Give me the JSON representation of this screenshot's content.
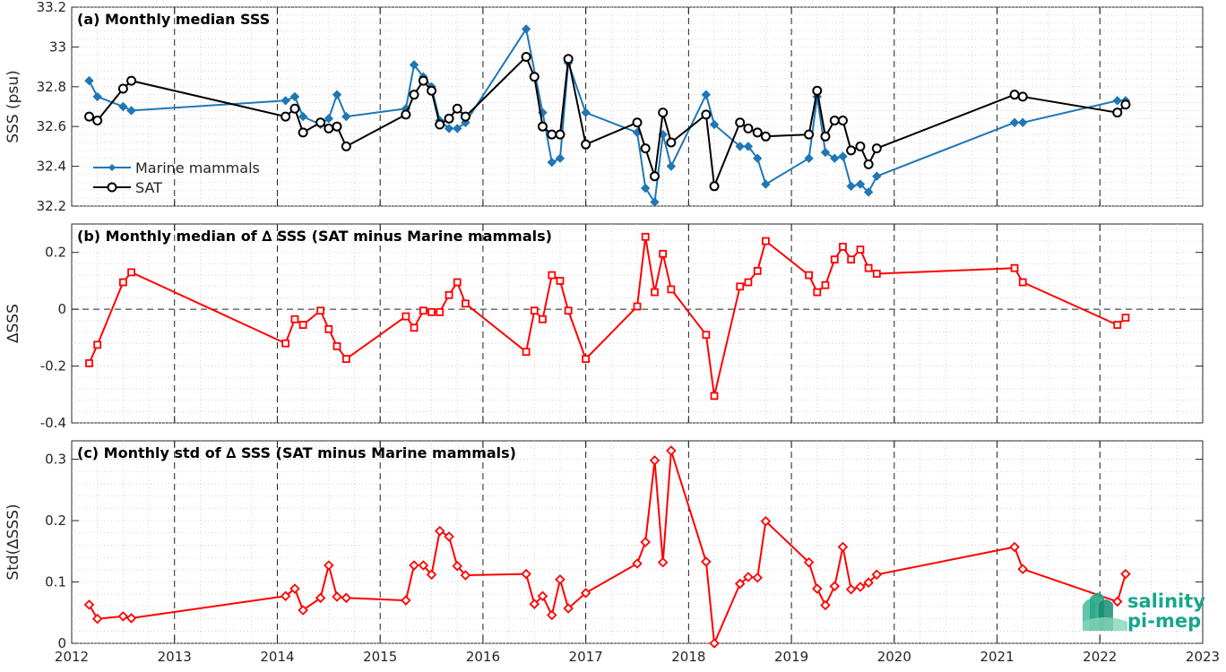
{
  "colors": {
    "marine": "#1f77b4",
    "sat": "#000000",
    "delta": "#ff0000",
    "logo": "#1aa58c"
  },
  "x_ticks": [
    "2012",
    "2013",
    "2014",
    "2015",
    "2016",
    "2017",
    "2018",
    "2019",
    "2020",
    "2021",
    "2022",
    "2023"
  ],
  "xlim": [
    2012,
    2023
  ],
  "logo": {
    "line1": "salinity",
    "line2": "pi-mep"
  },
  "chart_data": [
    {
      "type": "line",
      "title": "(a) Monthly median SSS",
      "ylabel": "SSS (psu)",
      "ylim": [
        32.2,
        33.2
      ],
      "y_ticks": [
        "32.2",
        "32.4",
        "32.6",
        "32.8",
        "33",
        "33.2"
      ],
      "grid": "dotted minor grid, dashed yearly lines",
      "legend": {
        "placement": "lower-left",
        "entries": [
          "Marine mammals",
          "SAT"
        ]
      },
      "series": [
        {
          "name": "Marine mammals",
          "marker": "diamond",
          "x": [
            2012.17,
            2012.25,
            2012.5,
            2012.58,
            2014.08,
            2014.17,
            2014.25,
            2014.42,
            2014.5,
            2014.58,
            2014.67,
            2015.25,
            2015.33,
            2015.42,
            2015.5,
            2015.58,
            2015.67,
            2015.75,
            2015.83,
            2016.42,
            2016.58,
            2016.67,
            2016.75,
            2016.83,
            2017.0,
            2017.5,
            2017.58,
            2017.67,
            2017.75,
            2017.83,
            2018.17,
            2018.25,
            2018.5,
            2018.58,
            2018.67,
            2018.75,
            2019.17,
            2019.25,
            2019.33,
            2019.42,
            2019.5,
            2019.58,
            2019.67,
            2019.75,
            2019.83,
            2021.17,
            2021.25,
            2022.17,
            2022.25
          ],
          "y": [
            32.83,
            32.75,
            32.7,
            32.68,
            32.73,
            32.75,
            32.65,
            32.61,
            32.64,
            32.76,
            32.65,
            32.69,
            32.91,
            32.85,
            32.8,
            32.63,
            32.59,
            32.59,
            32.62,
            33.09,
            32.67,
            32.42,
            32.44,
            32.92,
            32.67,
            32.57,
            32.29,
            32.22,
            32.56,
            32.4,
            32.76,
            32.61,
            32.5,
            32.5,
            32.44,
            32.31,
            32.44,
            32.75,
            32.47,
            32.44,
            32.45,
            32.3,
            32.31,
            32.27,
            32.35,
            32.62,
            32.62,
            32.73,
            32.73
          ]
        },
        {
          "name": "SAT",
          "marker": "circle",
          "x": [
            2012.17,
            2012.25,
            2012.5,
            2012.58,
            2014.08,
            2014.17,
            2014.25,
            2014.42,
            2014.5,
            2014.58,
            2014.67,
            2015.25,
            2015.33,
            2015.42,
            2015.5,
            2015.58,
            2015.67,
            2015.75,
            2015.83,
            2016.42,
            2016.5,
            2016.58,
            2016.67,
            2016.75,
            2016.83,
            2017.0,
            2017.5,
            2017.58,
            2017.67,
            2017.75,
            2017.83,
            2018.17,
            2018.25,
            2018.5,
            2018.58,
            2018.67,
            2018.75,
            2019.17,
            2019.25,
            2019.33,
            2019.42,
            2019.5,
            2019.58,
            2019.67,
            2019.75,
            2019.83,
            2021.17,
            2021.25,
            2022.17,
            2022.25
          ],
          "y": [
            32.65,
            32.63,
            32.79,
            32.83,
            32.65,
            32.69,
            32.57,
            32.62,
            32.59,
            32.6,
            32.5,
            32.66,
            32.76,
            32.83,
            32.78,
            32.61,
            32.64,
            32.69,
            32.65,
            32.95,
            32.85,
            32.6,
            32.56,
            32.56,
            32.94,
            32.51,
            32.62,
            32.49,
            32.35,
            32.67,
            32.52,
            32.66,
            32.3,
            32.62,
            32.59,
            32.57,
            32.55,
            32.56,
            32.78,
            32.55,
            32.63,
            32.63,
            32.48,
            32.5,
            32.41,
            32.49,
            32.76,
            32.75,
            32.67,
            32.71
          ]
        }
      ]
    },
    {
      "type": "line",
      "title": "(b) Monthly median of ∆ SSS (SAT minus Marine mammals)",
      "ylabel": "∆SSS",
      "ylim": [
        -0.4,
        0.3
      ],
      "y_ticks": [
        "-0.4",
        "-0.2",
        "0",
        "0.2"
      ],
      "zero_line": true,
      "series": [
        {
          "marker": "square",
          "x": [
            2012.17,
            2012.25,
            2012.5,
            2012.58,
            2014.08,
            2014.17,
            2014.25,
            2014.42,
            2014.5,
            2014.58,
            2014.67,
            2015.25,
            2015.33,
            2015.42,
            2015.5,
            2015.58,
            2015.67,
            2015.75,
            2015.83,
            2016.42,
            2016.5,
            2016.58,
            2016.67,
            2016.75,
            2016.83,
            2017.0,
            2017.5,
            2017.58,
            2017.67,
            2017.75,
            2017.83,
            2018.17,
            2018.25,
            2018.5,
            2018.58,
            2018.67,
            2018.75,
            2019.17,
            2019.25,
            2019.33,
            2019.42,
            2019.5,
            2019.58,
            2019.67,
            2019.75,
            2019.83,
            2021.17,
            2021.25,
            2022.17,
            2022.25
          ],
          "y": [
            -0.19,
            -0.125,
            0.095,
            0.13,
            -0.12,
            -0.035,
            -0.055,
            -0.005,
            -0.07,
            -0.13,
            -0.175,
            -0.025,
            -0.065,
            -0.005,
            -0.01,
            -0.01,
            0.05,
            0.095,
            0.02,
            -0.15,
            -0.005,
            -0.035,
            0.12,
            0.1,
            -0.005,
            -0.175,
            0.01,
            0.255,
            0.06,
            0.195,
            0.07,
            -0.09,
            -0.305,
            0.08,
            0.095,
            0.135,
            0.24,
            0.12,
            0.06,
            0.085,
            0.175,
            0.22,
            0.175,
            0.21,
            0.145,
            0.125,
            0.145,
            0.095,
            -0.055,
            -0.03
          ]
        }
      ]
    },
    {
      "type": "line",
      "title": "(c) Monthly std of ∆ SSS (SAT minus Marine mammals)",
      "ylabel": "Std(∆SSS)",
      "ylim": [
        0,
        0.33
      ],
      "y_ticks": [
        "0",
        "0.1",
        "0.2",
        "0.3"
      ],
      "series": [
        {
          "marker": "diamond",
          "x": [
            2012.17,
            2012.25,
            2012.5,
            2012.58,
            2014.08,
            2014.17,
            2014.25,
            2014.42,
            2014.5,
            2014.58,
            2014.67,
            2015.25,
            2015.33,
            2015.42,
            2015.5,
            2015.58,
            2015.67,
            2015.75,
            2015.83,
            2016.42,
            2016.5,
            2016.58,
            2016.67,
            2016.75,
            2016.83,
            2017.0,
            2017.5,
            2017.58,
            2017.67,
            2017.75,
            2017.83,
            2018.17,
            2018.25,
            2018.5,
            2018.58,
            2018.67,
            2018.75,
            2019.17,
            2019.25,
            2019.33,
            2019.42,
            2019.5,
            2019.58,
            2019.67,
            2019.75,
            2019.83,
            2021.17,
            2021.25,
            2022.17,
            2022.25
          ],
          "y": [
            0.063,
            0.04,
            0.044,
            0.041,
            0.077,
            0.089,
            0.054,
            0.074,
            0.127,
            0.076,
            0.074,
            0.07,
            0.127,
            0.127,
            0.112,
            0.183,
            0.174,
            0.126,
            0.111,
            0.113,
            0.064,
            0.077,
            0.046,
            0.104,
            0.057,
            0.082,
            0.13,
            0.165,
            0.298,
            0.132,
            0.314,
            0.133,
            0.0,
            0.097,
            0.108,
            0.107,
            0.199,
            0.132,
            0.089,
            0.062,
            0.093,
            0.157,
            0.088,
            0.092,
            0.099,
            0.112,
            0.157,
            0.121,
            0.068,
            0.113
          ]
        }
      ]
    }
  ]
}
